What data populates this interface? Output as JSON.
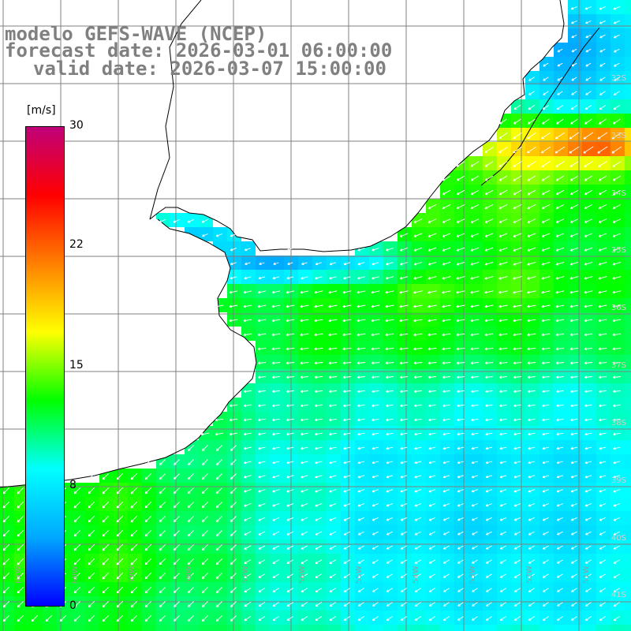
{
  "title": {
    "line1": "modelo GEFS-WAVE (NCEP)",
    "line2": "forecast date: 2026-03-01 06:00:00",
    "line3": "valid date: 2026-03-07 15:00:00"
  },
  "colorbar": {
    "unit": "[m/s]",
    "ticks": [
      "30",
      "22",
      "15",
      "8",
      "0"
    ],
    "tick_values": [
      30,
      22,
      15,
      8,
      0
    ],
    "min": 0,
    "max": 30,
    "stops": [
      "#0000ff",
      "#00a8ff",
      "#00ffff",
      "#00ff00",
      "#ffff00",
      "#ff8000",
      "#ff0000",
      "#c0007a"
    ]
  },
  "axes": {
    "lon_labels": [
      "61W",
      "60W",
      "59W",
      "58W",
      "57W",
      "56W",
      "55W",
      "54W",
      "53W",
      "52W",
      "51W"
    ],
    "lat_labels": [
      "32S",
      "33S",
      "34S",
      "35S",
      "36S",
      "37S",
      "38S",
      "39S",
      "40S",
      "41S"
    ]
  },
  "map": {
    "land_color": "#ffffff",
    "grid_color": "#808080",
    "coast_color": "#000000",
    "arrow_color": "#ffffff",
    "variable": "wind speed"
  }
}
